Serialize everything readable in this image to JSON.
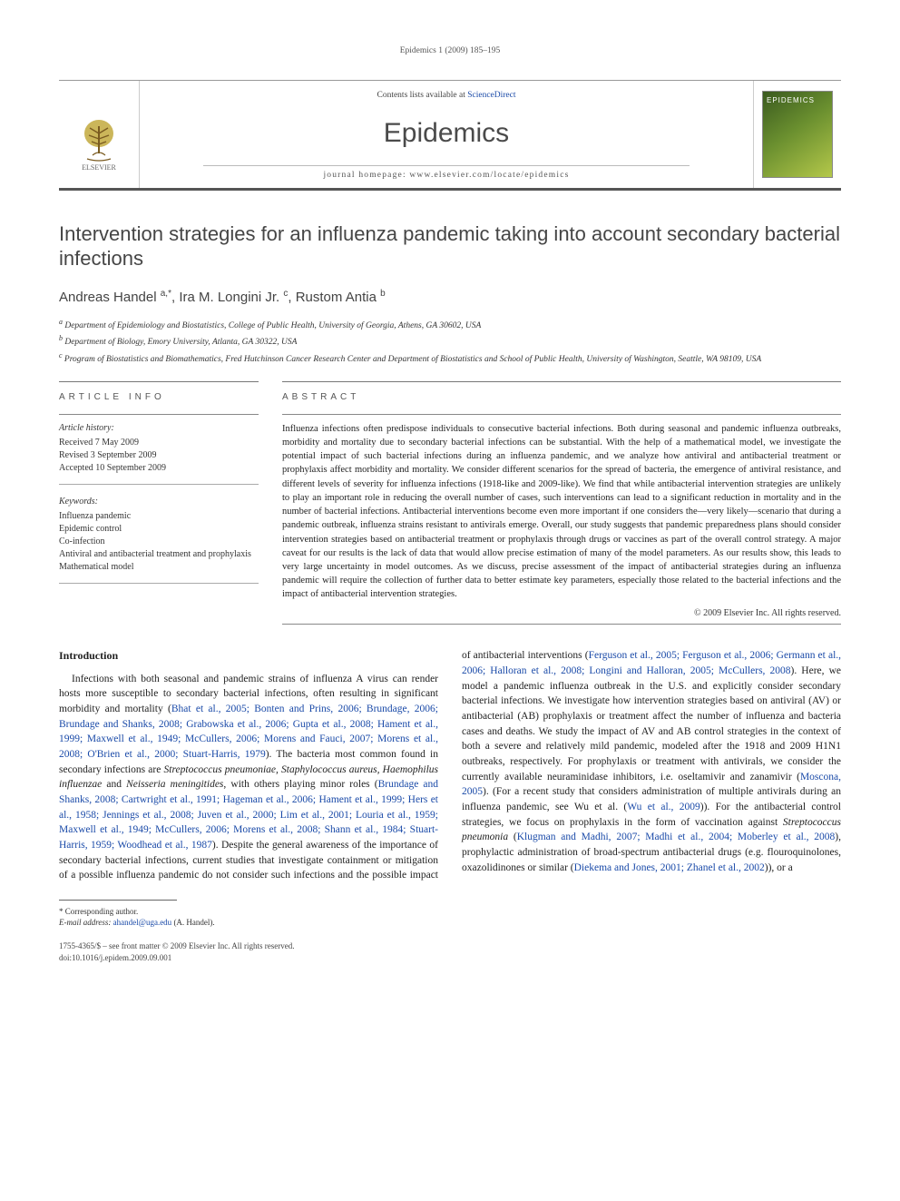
{
  "runhead": "Epidemics 1 (2009) 185–195",
  "masthead": {
    "contents_prefix": "Contents lists available at ",
    "contents_link": "ScienceDirect",
    "journal": "Epidemics",
    "homepage_prefix": "journal homepage: ",
    "homepage_url": "www.elsevier.com/locate/epidemics",
    "publisher": "ELSEVIER",
    "cover_label": "EPIDEMICS"
  },
  "title": "Intervention strategies for an influenza pandemic taking into account secondary bacterial infections",
  "authors_html": "Andreas Handel <sup>a,*</sup>, Ira M. Longini Jr. <sup>c</sup>, Rustom Antia <sup>b</sup>",
  "affiliations": [
    "a Department of Epidemiology and Biostatistics, College of Public Health, University of Georgia, Athens, GA 30602, USA",
    "b Department of Biology, Emory University, Atlanta, GA 30322, USA",
    "c Program of Biostatistics and Biomathematics, Fred Hutchinson Cancer Research Center and Department of Biostatistics and School of Public Health, University of Washington, Seattle, WA 98109, USA"
  ],
  "info": {
    "head": "ARTICLE INFO",
    "history_label": "Article history:",
    "history": [
      "Received 7 May 2009",
      "Revised 3 September 2009",
      "Accepted 10 September 2009"
    ],
    "keywords_label": "Keywords:",
    "keywords": [
      "Influenza pandemic",
      "Epidemic control",
      "Co-infection",
      "Antiviral and antibacterial treatment and prophylaxis",
      "Mathematical model"
    ]
  },
  "abstract": {
    "head": "ABSTRACT",
    "text": "Influenza infections often predispose individuals to consecutive bacterial infections. Both during seasonal and pandemic influenza outbreaks, morbidity and mortality due to secondary bacterial infections can be substantial. With the help of a mathematical model, we investigate the potential impact of such bacterial infections during an influenza pandemic, and we analyze how antiviral and antibacterial treatment or prophylaxis affect morbidity and mortality. We consider different scenarios for the spread of bacteria, the emergence of antiviral resistance, and different levels of severity for influenza infections (1918-like and 2009-like). We find that while antibacterial intervention strategies are unlikely to play an important role in reducing the overall number of cases, such interventions can lead to a significant reduction in mortality and in the number of bacterial infections. Antibacterial interventions become even more important if one considers the—very likely—scenario that during a pandemic outbreak, influenza strains resistant to antivirals emerge. Overall, our study suggests that pandemic preparedness plans should consider intervention strategies based on antibacterial treatment or prophylaxis through drugs or vaccines as part of the overall control strategy. A major caveat for our results is the lack of data that would allow precise estimation of many of the model parameters. As our results show, this leads to very large uncertainty in model outcomes. As we discuss, precise assessment of the impact of antibacterial strategies during an influenza pandemic will require the collection of further data to better estimate key parameters, especially those related to the bacterial infections and the impact of antibacterial intervention strategies.",
    "copyright": "© 2009 Elsevier Inc. All rights reserved."
  },
  "intro_head": "Introduction",
  "intro_para1_a": "Infections with both seasonal and pandemic strains of influenza A virus can render hosts more susceptible to secondary bacterial infections, often resulting in significant morbidity and mortality (",
  "intro_cite1": "Bhat et al., 2005; Bonten and Prins, 2006; Brundage, 2006; Brundage and Shanks, 2008; Grabowska et al., 2006; Gupta et al., 2008; Hament et al., 1999; Maxwell et al., 1949; McCullers, 2006; Morens and Fauci, 2007; Morens et al., 2008; O'Brien et al., 2000; Stuart-Harris, 1979",
  "intro_para1_b": "). The bacteria most common found in secondary infections are ",
  "intro_species": "Streptococcus pneumoniae, Staphylococcus aureus, Haemophilus influenzae",
  "intro_para1_c": " and ",
  "intro_species2": "Neisseria meningitides",
  "intro_para1_d": ", with others playing minor roles (",
  "intro_cite2": "Brundage and Shanks, 2008; Cartwright et al., 1991; Hageman et al., 2006; Hament et al., 1999; Hers et al., 1958; Jennings et al., 2008; Juven et al., 2000; Lim et al., 2001; Louria et al., 1959; Maxwell et al., 1949; McCullers, 2006; Morens et al., 2008; Shann et al., 1984; Stuart-Harris, 1959; Woodhead et al., 1987",
  "intro_para1_e": "). Despite the general awareness of the importance of secondary bacterial infections, current studies that",
  "intro_para2_a": "investigate containment or mitigation of a possible influenza pandemic do not consider such infections and the possible impact of antibacterial interventions (",
  "intro_cite3": "Ferguson et al., 2005; Ferguson et al., 2006; Germann et al., 2006; Halloran et al., 2008; Longini and Halloran, 2005; McCullers, 2008",
  "intro_para2_b": "). Here, we model a pandemic influenza outbreak in the U.S. and explicitly consider secondary bacterial infections. We investigate how intervention strategies based on antiviral (AV) or antibacterial (AB) prophylaxis or treatment affect the number of influenza and bacteria cases and deaths. We study the impact of AV and AB control strategies in the context of both a severe and relatively mild pandemic, modeled after the 1918 and 2009 H1N1 outbreaks, respectively. For prophylaxis or treatment with antivirals, we consider the currently available neuraminidase inhibitors, i.e. oseltamivir and zanamivir (",
  "intro_cite4": "Moscona, 2005",
  "intro_para2_c": "). (For a recent study that considers administration of multiple antivirals during an influenza pandemic, see Wu et al. (",
  "intro_cite5": "Wu et al., 2009",
  "intro_para2_d": ")). For the antibacterial control strategies, we focus on prophylaxis in the form of vaccination against ",
  "intro_species3": "Streptococcus pneumonia",
  "intro_para2_e": " (",
  "intro_cite6": "Klugman and Madhi, 2007; Madhi et al., 2004; Moberley et al., 2008",
  "intro_para2_f": "), prophylactic administration of broad-spectrum antibacterial drugs (e.g. flouroquinolones, oxazolidinones or similar (",
  "intro_cite7": "Diekema and Jones, 2001; Zhanel et al., 2002",
  "intro_para2_g": ")), or a",
  "footnote": {
    "corr": "* Corresponding author.",
    "email_label": "E-mail address: ",
    "email": "ahandel@uga.edu",
    "email_who": " (A. Handel)."
  },
  "bottom": {
    "issn_line": "1755-4365/$ – see front matter © 2009 Elsevier Inc. All rights reserved.",
    "doi_line": "doi:10.1016/j.epidem.2009.09.001"
  },
  "colors": {
    "link": "#1a4aa8",
    "rule": "#555555",
    "text": "#222222"
  }
}
